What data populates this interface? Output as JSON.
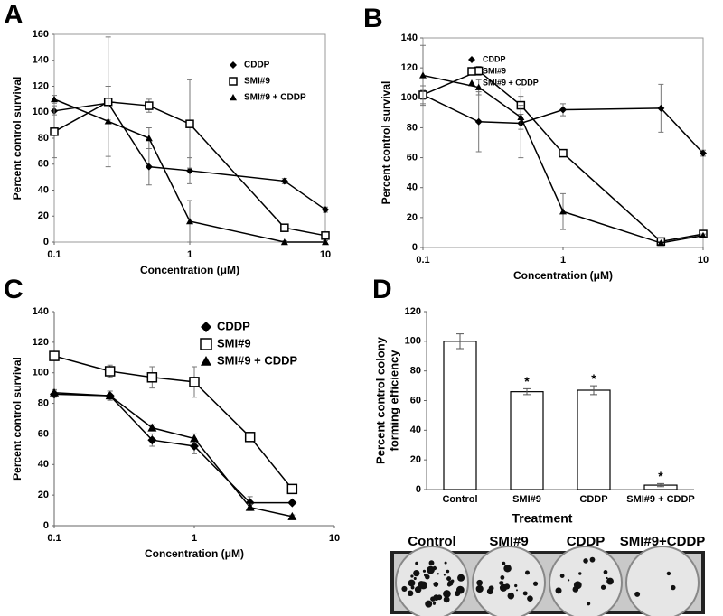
{
  "chart_data": [
    {
      "type": "line",
      "panel": "A",
      "xlabel": "Concentration (μM)",
      "ylabel": "Percent control survival",
      "log_x": true,
      "xlim": [
        0.1,
        10
      ],
      "xticks": [
        0.1,
        1,
        10
      ],
      "ylim": [
        0,
        160
      ],
      "yticks": [
        0,
        20,
        40,
        60,
        80,
        100,
        120,
        140,
        160
      ],
      "legend": "upper right",
      "x": [
        0.1,
        0.25,
        0.5,
        1,
        5,
        10
      ],
      "series": [
        {
          "name": "CDDP",
          "marker": "diamond",
          "color": "#000000",
          "values": [
            101,
            107,
            58,
            55,
            47,
            25
          ],
          "errors": [
            3,
            13,
            14,
            10,
            2,
            2
          ]
        },
        {
          "name": "SMI#9",
          "marker": "square",
          "color": "#000000",
          "values": [
            85,
            108,
            105,
            91,
            11,
            5
          ],
          "errors": [
            20,
            50,
            5,
            34,
            2,
            2
          ]
        },
        {
          "name": "SMI#9 + CDDP",
          "marker": "triangle",
          "color": "#000000",
          "values": [
            110,
            93,
            80,
            16,
            0,
            0
          ],
          "errors": [
            3,
            27,
            8,
            16,
            1,
            1
          ]
        }
      ]
    },
    {
      "type": "line",
      "panel": "B",
      "xlabel": "Concentration (μM)",
      "ylabel": "Percent control survival",
      "log_x": true,
      "xlim": [
        0.1,
        10
      ],
      "xticks": [
        0.1,
        1,
        10
      ],
      "ylim": [
        0,
        140
      ],
      "yticks": [
        0,
        20,
        40,
        60,
        80,
        100,
        120,
        140
      ],
      "legend": "upper right",
      "x": [
        0.1,
        0.25,
        0.5,
        1,
        5,
        10
      ],
      "series": [
        {
          "name": "CDDP",
          "marker": "diamond",
          "color": "#000000",
          "values": [
            102,
            84,
            83,
            92,
            93,
            63
          ],
          "errors": [
            3,
            20,
            23,
            4,
            16,
            2
          ]
        },
        {
          "name": "SMI#9",
          "marker": "square",
          "color": "#000000",
          "values": [
            102,
            118,
            95,
            63,
            4,
            9
          ],
          "errors": [
            6,
            3,
            6,
            2,
            1,
            1
          ]
        },
        {
          "name": "SMI#9 + CDDP",
          "marker": "triangle",
          "color": "#000000",
          "values": [
            115,
            107,
            87,
            24,
            3,
            8
          ],
          "errors": [
            20,
            5,
            8,
            12,
            1,
            1
          ]
        }
      ]
    },
    {
      "type": "line",
      "panel": "C",
      "xlabel": "Concentration (μM)",
      "ylabel": "Percent control survival",
      "log_x": true,
      "xlim": [
        0.1,
        10
      ],
      "xticks": [
        0.1,
        1,
        10
      ],
      "ylim": [
        0,
        140
      ],
      "yticks": [
        0,
        20,
        40,
        60,
        80,
        100,
        120,
        140
      ],
      "legend": "upper right",
      "x": [
        0.1,
        0.25,
        0.5,
        1,
        2.5,
        5
      ],
      "series": [
        {
          "name": "CDDP",
          "marker": "diamond",
          "color": "#000000",
          "values": [
            86,
            85,
            56,
            52,
            15,
            15
          ],
          "errors": [
            2,
            3,
            4,
            5,
            4,
            1
          ]
        },
        {
          "name": "SMI#9",
          "marker": "square",
          "color": "#000000",
          "values": [
            111,
            101,
            97,
            94,
            58,
            24
          ],
          "errors": [
            2,
            4,
            7,
            10,
            3,
            1
          ]
        },
        {
          "name": "SMI#9 + CDDP",
          "marker": "triangle",
          "color": "#000000",
          "values": [
            87,
            85,
            64,
            57,
            12,
            6
          ],
          "errors": [
            2,
            3,
            2,
            3,
            2,
            1
          ]
        }
      ]
    },
    {
      "type": "bar",
      "panel": "D",
      "xlabel": "Treatment",
      "ylabel": [
        "Percent control colony",
        "forming efficiency"
      ],
      "ylim": [
        0,
        120
      ],
      "yticks": [
        0,
        20,
        40,
        60,
        80,
        100,
        120
      ],
      "color": "#ffffff",
      "categories": [
        "Control",
        "SMI#9",
        "CDDP",
        "SMI#9 + CDDP"
      ],
      "values": [
        100,
        66,
        67,
        3
      ],
      "errors": [
        5,
        2,
        3,
        1
      ],
      "significance": [
        null,
        "*",
        "*",
        "*"
      ],
      "image_labels": [
        "Control",
        "SMI#9",
        "CDDP",
        "SMI#9+CDDP"
      ]
    }
  ]
}
